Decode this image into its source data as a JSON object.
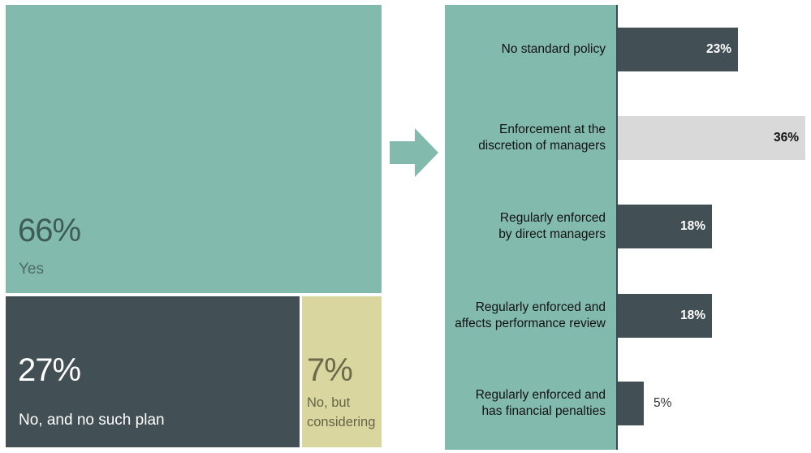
{
  "chart_data": [
    {
      "type": "treemap",
      "items": [
        {
          "label": "Yes",
          "value": 66,
          "display": "66%",
          "color": "#82bbad"
        },
        {
          "label": "No, and no such plan",
          "value": 27,
          "display": "27%",
          "color": "#424f55"
        },
        {
          "label": "No, but considering",
          "value": 7,
          "display": "7%",
          "color": "#d9d69f"
        }
      ]
    },
    {
      "type": "bar",
      "orientation": "horizontal",
      "categories": [
        "No standard policy",
        "Enforcement at the discretion of managers",
        "Regularly enforced by direct managers",
        "Regularly enforced and affects performance review",
        "Regularly enforced and has financial penalties"
      ],
      "label_lines": [
        [
          "No standard policy"
        ],
        [
          "Enforcement at the",
          "discretion of managers"
        ],
        [
          "Regularly enforced",
          "by direct managers"
        ],
        [
          "Regularly enforced and",
          "affects performance review"
        ],
        [
          "Regularly enforced and",
          "has financial penalties"
        ]
      ],
      "values": [
        23,
        36,
        18,
        18,
        5
      ],
      "value_labels": [
        "23%",
        "36%",
        "18%",
        "18%",
        "5%"
      ],
      "bar_colors": [
        "#424f55",
        "#d9d9d9",
        "#424f55",
        "#424f55",
        "#424f55"
      ],
      "xlim": [
        0,
        36
      ],
      "label_panel_color": "#82bbad"
    }
  ]
}
